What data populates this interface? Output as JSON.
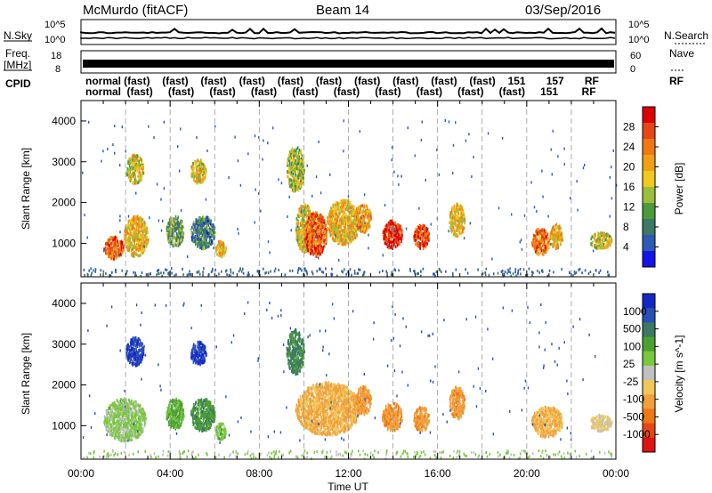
{
  "header": {
    "station": "McMurdo (fitACF)",
    "beam": "Beam 14",
    "date": "03/Sep/2016"
  },
  "strip_labels": {
    "nsky": "N.Sky",
    "nsearch": "N.Search",
    "freq": "Freq.",
    "freq_unit": "[MHz]",
    "nave": "Nave",
    "cpid": "CPID",
    "cpid_right": "RF"
  },
  "noise_axis": {
    "ticks": [
      "10^5",
      "10^0"
    ]
  },
  "freq_axis": {
    "ticks": [
      "18",
      "8"
    ]
  },
  "nave_axis": {
    "ticks": [
      "60",
      "0"
    ]
  },
  "cpid_rows": {
    "row1": [
      "normal",
      "(fast)",
      "(fast)",
      "(fast)",
      "(fast)",
      "(fast)",
      "(fast)",
      "(fast)",
      "(fast)",
      "(fast)",
      "(fast)",
      "151",
      "157",
      "RF"
    ],
    "row2": [
      "normal",
      "(fast)",
      "(fast)",
      "(fast)",
      "(fast)",
      "(fast)",
      "(fast)",
      "(fast)",
      "(fast)",
      "(fast)",
      "(fast)",
      "151",
      "RF"
    ]
  },
  "colors": {
    "power_scale": [
      "#1414e6",
      "#2d5ab4",
      "#3c7864",
      "#4b9b3c",
      "#9bbe3c",
      "#f0c81e",
      "#f0a014",
      "#f07814",
      "#e64614",
      "#dc0000"
    ],
    "velocity_scale": [
      "#1428c8",
      "#2850b4",
      "#3c7864",
      "#4ba032",
      "#78c83c",
      "#c0c0c0",
      "#f0c85a",
      "#f0a03c",
      "#f07814",
      "#e64614",
      "#dc1414"
    ]
  },
  "chart_data": [
    {
      "type": "heatmap",
      "title": "",
      "xlabel": "Time UT",
      "ylabel": "Slant Range [km]",
      "x_ticks": [
        "00:00",
        "04:00",
        "08:00",
        "12:00",
        "16:00",
        "20:00",
        "00:00"
      ],
      "x_range_hours": [
        0,
        24
      ],
      "y_ticks": [
        1000,
        2000,
        3000,
        4000
      ],
      "ylim": [
        180,
        4500
      ],
      "colorbar_label": "Power [dB]",
      "colorbar_ticks": [
        "28",
        "24",
        "20",
        "16",
        "12",
        "8",
        "4"
      ],
      "colorbar_range": [
        0,
        30
      ],
      "echo_regions": [
        {
          "t": [
            1.0,
            1.9
          ],
          "r": [
            650,
            1200
          ],
          "v": 24
        },
        {
          "t": [
            1.9,
            3.0
          ],
          "r": [
            700,
            1700
          ],
          "v": 18
        },
        {
          "t": [
            2.0,
            2.8
          ],
          "r": [
            2500,
            3200
          ],
          "v": 16
        },
        {
          "t": [
            3.8,
            4.6
          ],
          "r": [
            950,
            1700
          ],
          "v": 10
        },
        {
          "t": [
            4.9,
            6.0
          ],
          "r": [
            900,
            1700
          ],
          "v": 8
        },
        {
          "t": [
            4.9,
            5.6
          ],
          "r": [
            2500,
            3100
          ],
          "v": 16
        },
        {
          "t": [
            6.0,
            6.5
          ],
          "r": [
            700,
            1100
          ],
          "v": 18
        },
        {
          "t": [
            9.2,
            10.0
          ],
          "r": [
            2300,
            3400
          ],
          "v": 14
        },
        {
          "t": [
            9.6,
            10.4
          ],
          "r": [
            800,
            2000
          ],
          "v": 16
        },
        {
          "t": [
            10.0,
            11.0
          ],
          "r": [
            700,
            1800
          ],
          "v": 24
        },
        {
          "t": [
            11.0,
            12.5
          ],
          "r": [
            1000,
            2100
          ],
          "v": 18
        },
        {
          "t": [
            12.3,
            13.0
          ],
          "r": [
            1300,
            2000
          ],
          "v": 20
        },
        {
          "t": [
            13.5,
            14.4
          ],
          "r": [
            900,
            1600
          ],
          "v": 28
        },
        {
          "t": [
            14.9,
            15.6
          ],
          "r": [
            900,
            1500
          ],
          "v": 26
        },
        {
          "t": [
            16.5,
            17.2
          ],
          "r": [
            1200,
            2000
          ],
          "v": 18
        },
        {
          "t": [
            20.2,
            21.0
          ],
          "r": [
            750,
            1400
          ],
          "v": 22
        },
        {
          "t": [
            21.0,
            21.6
          ],
          "r": [
            900,
            1500
          ],
          "v": 18
        },
        {
          "t": [
            22.8,
            23.8
          ],
          "r": [
            900,
            1300
          ],
          "v": 16
        }
      ]
    },
    {
      "type": "heatmap",
      "title": "",
      "xlabel": "Time UT",
      "ylabel": "Slant Range [km]",
      "x_ticks": [
        "00:00",
        "04:00",
        "08:00",
        "12:00",
        "16:00",
        "20:00",
        "00:00"
      ],
      "x_range_hours": [
        0,
        24
      ],
      "y_ticks": [
        1000,
        2000,
        3000,
        4000
      ],
      "ylim": [
        180,
        4500
      ],
      "colorbar_label": "Velocity [m s^-1]",
      "colorbar_ticks": [
        "1000",
        "500",
        "100",
        "25",
        "-25",
        "-100",
        "-500",
        "-1000"
      ],
      "colorbar_range": [
        -1000,
        1000
      ],
      "echo_regions": [
        {
          "t": [
            1.0,
            2.9
          ],
          "r": [
            650,
            1700
          ],
          "v": 150
        },
        {
          "t": [
            2.0,
            2.8
          ],
          "r": [
            2500,
            3200
          ],
          "v": 800
        },
        {
          "t": [
            3.8,
            4.6
          ],
          "r": [
            950,
            1700
          ],
          "v": 300
        },
        {
          "t": [
            4.9,
            6.0
          ],
          "r": [
            900,
            1700
          ],
          "v": 400
        },
        {
          "t": [
            4.9,
            5.6
          ],
          "r": [
            2500,
            3100
          ],
          "v": 800
        },
        {
          "t": [
            6.0,
            6.5
          ],
          "r": [
            700,
            1100
          ],
          "v": 200
        },
        {
          "t": [
            9.2,
            10.0
          ],
          "r": [
            2300,
            3400
          ],
          "v": 500
        },
        {
          "t": [
            9.6,
            12.5
          ],
          "r": [
            800,
            2100
          ],
          "v": -300
        },
        {
          "t": [
            12.3,
            13.0
          ],
          "r": [
            1300,
            2000
          ],
          "v": -400
        },
        {
          "t": [
            13.5,
            14.4
          ],
          "r": [
            900,
            1600
          ],
          "v": -400
        },
        {
          "t": [
            14.9,
            15.6
          ],
          "r": [
            900,
            1500
          ],
          "v": -400
        },
        {
          "t": [
            16.5,
            17.2
          ],
          "r": [
            1200,
            2000
          ],
          "v": -400
        },
        {
          "t": [
            20.2,
            21.6
          ],
          "r": [
            750,
            1500
          ],
          "v": -300
        },
        {
          "t": [
            22.8,
            23.8
          ],
          "r": [
            900,
            1300
          ],
          "v": -100
        }
      ]
    }
  ]
}
